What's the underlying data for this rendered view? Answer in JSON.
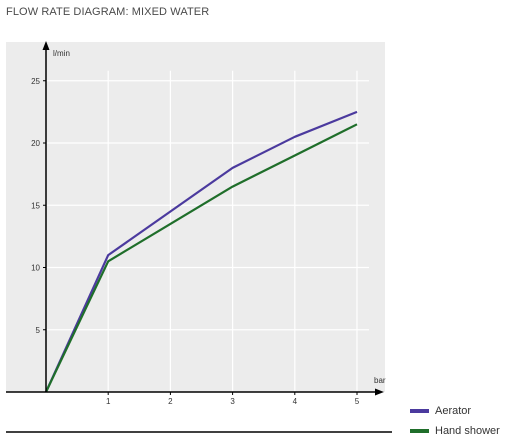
{
  "title": "FLOW RATE DIAGRAM: MIXED WATER",
  "chart_data": {
    "type": "line",
    "title": "FLOW RATE DIAGRAM: MIXED WATER",
    "xlabel": "bar",
    "ylabel": "l/min",
    "xlim": [
      0,
      5
    ],
    "ylim": [
      0,
      25
    ],
    "x_ticks": [
      1,
      2,
      3,
      4,
      5
    ],
    "y_ticks": [
      5,
      10,
      15,
      20,
      25
    ],
    "grid": true,
    "legend_position": "bottom-right",
    "series": [
      {
        "name": "Aerator",
        "color": "#4b3a9e",
        "x": [
          0,
          1,
          2,
          3,
          4,
          5
        ],
        "values": [
          0,
          11,
          14.5,
          18,
          20.5,
          22.5
        ]
      },
      {
        "name": "Hand shower",
        "color": "#1f6e2a",
        "x": [
          0,
          1,
          2,
          3,
          4,
          5
        ],
        "values": [
          0,
          10.5,
          13.5,
          16.5,
          19,
          21.5
        ]
      }
    ]
  }
}
